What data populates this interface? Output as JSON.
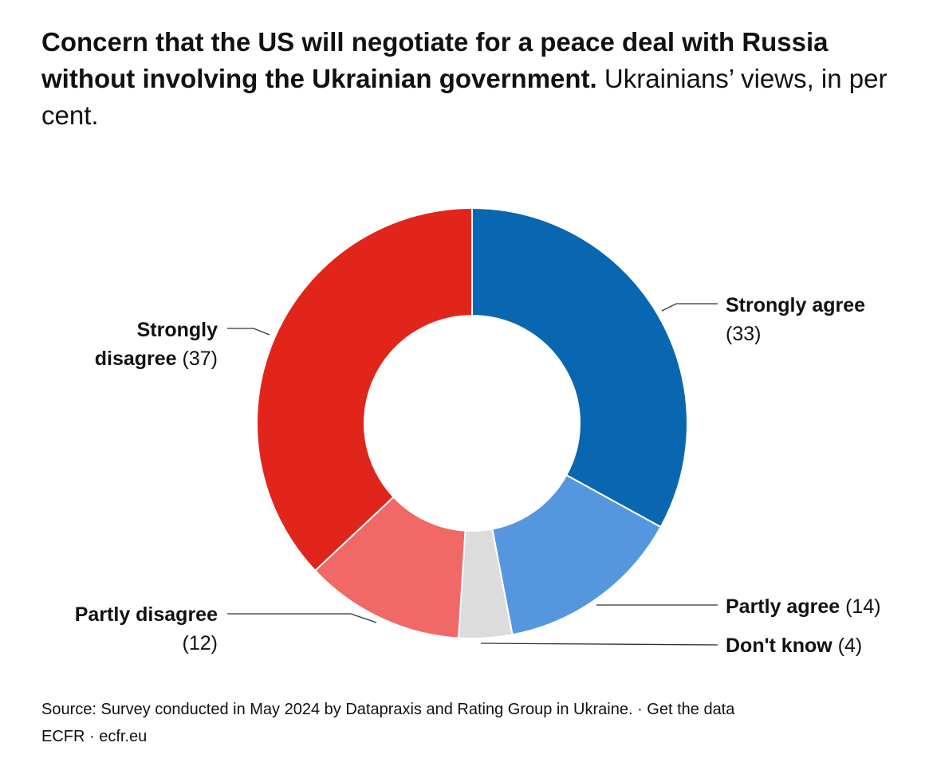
{
  "title": "Concern that the US will negotiate for a peace deal with Russia without involving the Ukrainian government.",
  "subtitle": "Ukrainians’ views, in per cent.",
  "source": "Source: Survey conducted in May 2024 by Datapraxis and Rating Group in Ukraine. · Get the data",
  "credit": "ECFR · ecfr.eu",
  "chart_data": {
    "type": "pie",
    "donut": true,
    "title": "Concern that the US will negotiate for a peace deal with Russia without involving the Ukrainian government.",
    "subtitle": "Ukrainians’ views, in per cent.",
    "slices": [
      {
        "label": "Strongly agree",
        "value": 33,
        "value_label": "(33)",
        "color": "#0867b0"
      },
      {
        "label": "Partly agree",
        "value": 14,
        "value_label": "(14)",
        "color": "#5597df"
      },
      {
        "label": "Don't know",
        "value": 4,
        "value_label": "(4)",
        "color": "#dcdcdc"
      },
      {
        "label": "Partly disagree",
        "value": 12,
        "value_label": "(12)",
        "color": "#f06966"
      },
      {
        "label": "Strongly disagree",
        "value": 37,
        "value_label": "(37)",
        "color": "#e1251b"
      }
    ],
    "legend": "none"
  }
}
